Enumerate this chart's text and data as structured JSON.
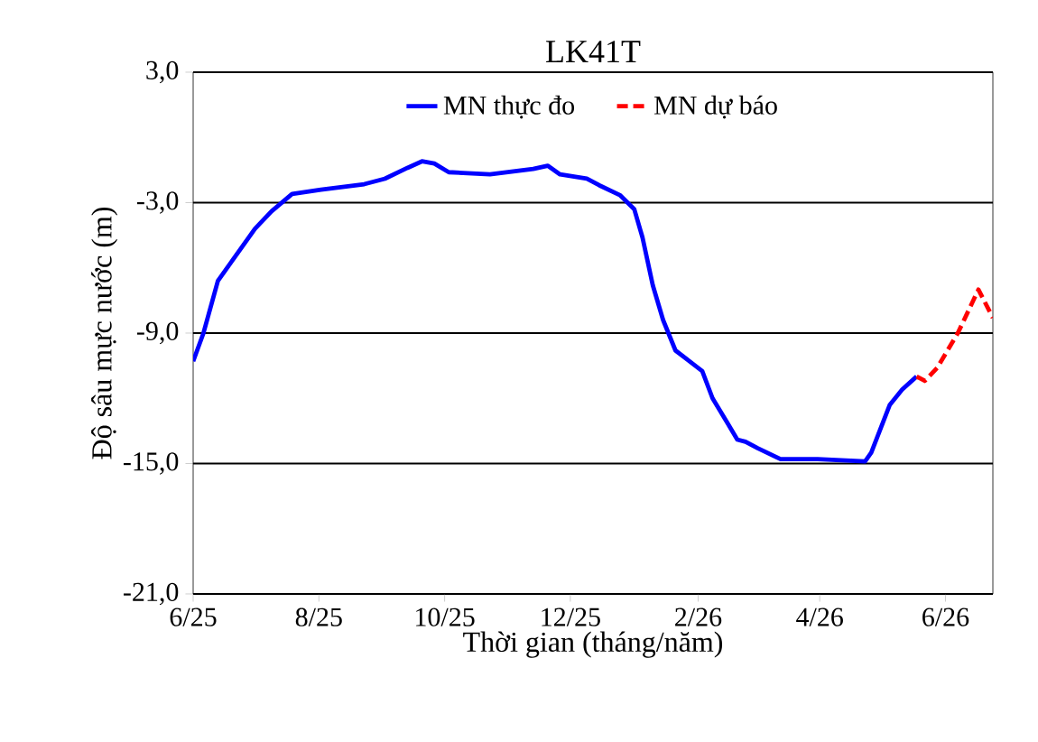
{
  "chart_data": {
    "type": "line",
    "title": "LK41T",
    "xlabel": "Thời gian  (tháng/năm)",
    "ylabel": "Độ sâu mực nước (m)",
    "xlim": [
      "2025-06-01",
      "2026-06-24"
    ],
    "ylim": [
      -21,
      3
    ],
    "xticks": [
      {
        "value": "2025-06-01",
        "label": "6/25"
      },
      {
        "value": "2025-08-01",
        "label": "8/25"
      },
      {
        "value": "2025-10-01",
        "label": "10/25"
      },
      {
        "value": "2025-12-01",
        "label": "12/25"
      },
      {
        "value": "2026-02-01",
        "label": "2/26"
      },
      {
        "value": "2026-04-01",
        "label": "4/26"
      },
      {
        "value": "2026-06-01",
        "label": "6/26"
      }
    ],
    "yticks": [
      {
        "value": 3,
        "label": "3,0"
      },
      {
        "value": -3,
        "label": "-3,0"
      },
      {
        "value": -9,
        "label": "-9,0"
      },
      {
        "value": -15,
        "label": "-15,0"
      },
      {
        "value": -21,
        "label": "-21,0"
      }
    ],
    "grid": "y",
    "legend": "top",
    "marker": "none",
    "series": [
      {
        "name": "MN thực đo",
        "color": "#0000ff",
        "line_style": "solid",
        "x": [
          "2025-06-01",
          "2025-06-06",
          "2025-06-13",
          "2025-06-22",
          "2025-07-01",
          "2025-07-09",
          "2025-07-19",
          "2025-08-02",
          "2025-08-23",
          "2025-09-02",
          "2025-09-13",
          "2025-09-20",
          "2025-09-26",
          "2025-10-03",
          "2025-10-23",
          "2025-11-13",
          "2025-11-20",
          "2025-11-26",
          "2025-12-09",
          "2025-12-15",
          "2025-12-25",
          "2026-01-01",
          "2026-01-05",
          "2026-01-10",
          "2026-01-15",
          "2026-01-21",
          "2026-02-03",
          "2026-02-08",
          "2026-02-15",
          "2026-02-20",
          "2026-02-24",
          "2026-03-02",
          "2026-03-13",
          "2026-03-31",
          "2026-04-23",
          "2026-04-26",
          "2026-05-05",
          "2026-05-11",
          "2026-05-18"
        ],
        "values": [
          -10.3,
          -9.0,
          -6.6,
          -5.4,
          -4.2,
          -3.4,
          -2.6,
          -2.4,
          -2.15,
          -1.9,
          -1.4,
          -1.1,
          -1.2,
          -1.6,
          -1.7,
          -1.45,
          -1.3,
          -1.7,
          -1.9,
          -2.2,
          -2.65,
          -3.3,
          -4.6,
          -6.8,
          -8.4,
          -9.8,
          -10.75,
          -12.0,
          -13.1,
          -13.9,
          -14.0,
          -14.3,
          -14.8,
          -14.8,
          -14.9,
          -14.5,
          -12.3,
          -11.6,
          -11.0
        ]
      },
      {
        "name": "MN dự báo",
        "color": "#ff0000",
        "line_style": "dashed",
        "x": [
          "2026-05-18",
          "2026-05-22",
          "2026-05-28",
          "2026-06-07",
          "2026-06-17",
          "2026-06-24"
        ],
        "values": [
          -11.0,
          -11.2,
          -10.6,
          -9.0,
          -7.0,
          -8.3
        ]
      }
    ]
  }
}
